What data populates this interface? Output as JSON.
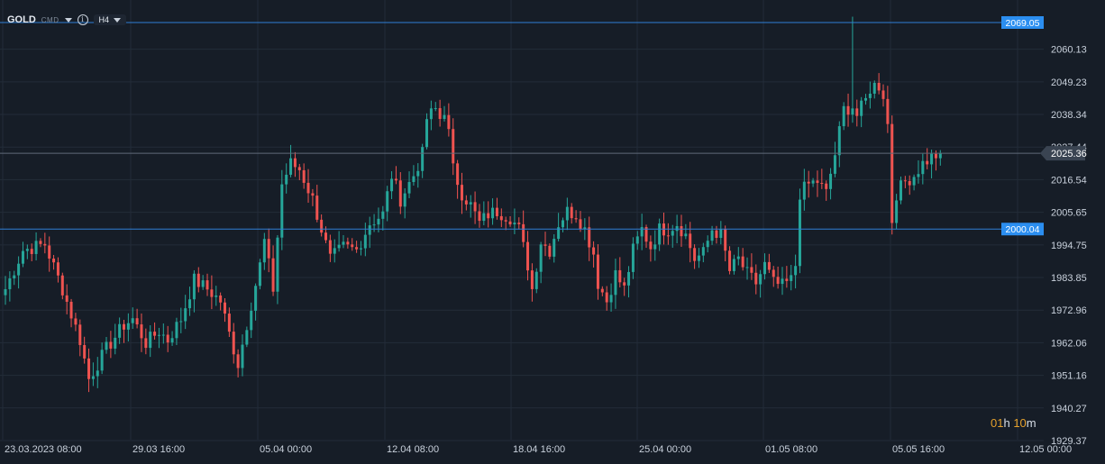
{
  "toolbar": {
    "symbol": "GOLD",
    "market": "CMD",
    "info_icon": "info-icon",
    "timeframe": "H4",
    "dropdown_icon": "chevron-down-icon"
  },
  "timer": {
    "hours": "01",
    "h_unit": "h",
    "minutes": "10",
    "m_unit": "m"
  },
  "colors": {
    "background": "#161d27",
    "grid": "#232c38",
    "up": "#26a69a",
    "down": "#ef5350",
    "level_line": "#2f7fd6",
    "level_label": "#2b8ef0",
    "price_label": "#3a4452",
    "axis_text": "#c9d1dc"
  },
  "chart_data": {
    "type": "candlestick",
    "y_ticks": [
      "2060.13",
      "2049.23",
      "2038.34",
      "2027.44",
      "2016.54",
      "2005.65",
      "1994.75",
      "1983.85",
      "1972.96",
      "1962.06",
      "1951.16",
      "1940.27",
      "1929.37"
    ],
    "x_ticks": [
      "23.03.2023  08:00",
      "29.03  16:00",
      "05.04  00:00",
      "12.04  08:00",
      "18.04  16:00",
      "25.04  00:00",
      "01.05  08:00",
      "05.05  16:00",
      "12.05  00:00"
    ],
    "ylim": [
      1929.37,
      2069.05
    ],
    "levels": [
      {
        "value": 2069.05,
        "label": "2069.05"
      },
      {
        "value": 2000.04,
        "label": "2000.04"
      }
    ],
    "current_price": {
      "value": 2025.36,
      "label": "2025.36"
    },
    "waypoints": [
      [
        0,
        1980
      ],
      [
        4,
        1993
      ],
      [
        9,
        1995
      ],
      [
        13,
        1980
      ],
      [
        17,
        1963
      ],
      [
        19,
        1950
      ],
      [
        23,
        1960
      ],
      [
        27,
        1968
      ],
      [
        29,
        1970
      ],
      [
        32,
        1962
      ],
      [
        35,
        1966
      ],
      [
        37,
        1963
      ],
      [
        40,
        1970
      ],
      [
        43,
        1983
      ],
      [
        46,
        1980
      ],
      [
        49,
        1976
      ],
      [
        51,
        1965
      ],
      [
        53,
        1955
      ],
      [
        56,
        1975
      ],
      [
        58,
        1988
      ],
      [
        59,
        1996
      ],
      [
        61,
        1980
      ],
      [
        63,
        2015
      ],
      [
        65,
        2022
      ],
      [
        67,
        2020
      ],
      [
        70,
        2010
      ],
      [
        72,
        2000
      ],
      [
        74,
        1990
      ],
      [
        77,
        1994
      ],
      [
        80,
        1993
      ],
      [
        83,
        2002
      ],
      [
        86,
        2005
      ],
      [
        88,
        2018
      ],
      [
        90,
        2010
      ],
      [
        93,
        2018
      ],
      [
        95,
        2025
      ],
      [
        96,
        2037
      ],
      [
        98,
        2040
      ],
      [
        99,
        2037
      ],
      [
        100,
        2040
      ],
      [
        101,
        2032
      ],
      [
        102,
        2020
      ],
      [
        104,
        2012
      ],
      [
        106,
        2008
      ],
      [
        108,
        2002
      ],
      [
        110,
        2005
      ],
      [
        112,
        2006
      ],
      [
        115,
        2004
      ],
      [
        117,
        2000
      ],
      [
        119,
        1988
      ],
      [
        120,
        1980
      ],
      [
        122,
        1996
      ],
      [
        124,
        1993
      ],
      [
        126,
        2002
      ],
      [
        128,
        2006
      ],
      [
        130,
        2005
      ],
      [
        132,
        2000
      ],
      [
        134,
        1992
      ],
      [
        135,
        1982
      ],
      [
        137,
        1976
      ],
      [
        139,
        1985
      ],
      [
        141,
        1980
      ],
      [
        143,
        1993
      ],
      [
        145,
        2000
      ],
      [
        147,
        1994
      ],
      [
        149,
        2000
      ],
      [
        151,
        2000
      ],
      [
        153,
        2002
      ],
      [
        155,
        1998
      ],
      [
        157,
        1990
      ],
      [
        159,
        1992
      ],
      [
        161,
        2000
      ],
      [
        163,
        1998
      ],
      [
        165,
        1986
      ],
      [
        167,
        1990
      ],
      [
        169,
        1985
      ],
      [
        171,
        1982
      ],
      [
        173,
        1988
      ],
      [
        175,
        1982
      ],
      [
        177,
        1981
      ],
      [
        179,
        1983
      ],
      [
        180,
        1988
      ],
      [
        181,
        2012
      ],
      [
        183,
        2015
      ],
      [
        185,
        2016
      ],
      [
        187,
        2012
      ],
      [
        189,
        2025
      ],
      [
        191,
        2040
      ],
      [
        193,
        2041
      ],
      [
        194,
        2038
      ],
      [
        196,
        2043
      ],
      [
        197,
        2047
      ],
      [
        198,
        2048
      ],
      [
        199,
        2048
      ],
      [
        200,
        2045
      ],
      [
        201,
        2035
      ],
      [
        202,
        2003
      ],
      [
        203,
        2012
      ],
      [
        205,
        2016
      ],
      [
        207,
        2018
      ],
      [
        209,
        2022
      ],
      [
        211,
        2024
      ],
      [
        213,
        2025.36
      ]
    ],
    "spikes": [
      [
        193,
        2071
      ],
      [
        115,
        2004
      ]
    ]
  }
}
